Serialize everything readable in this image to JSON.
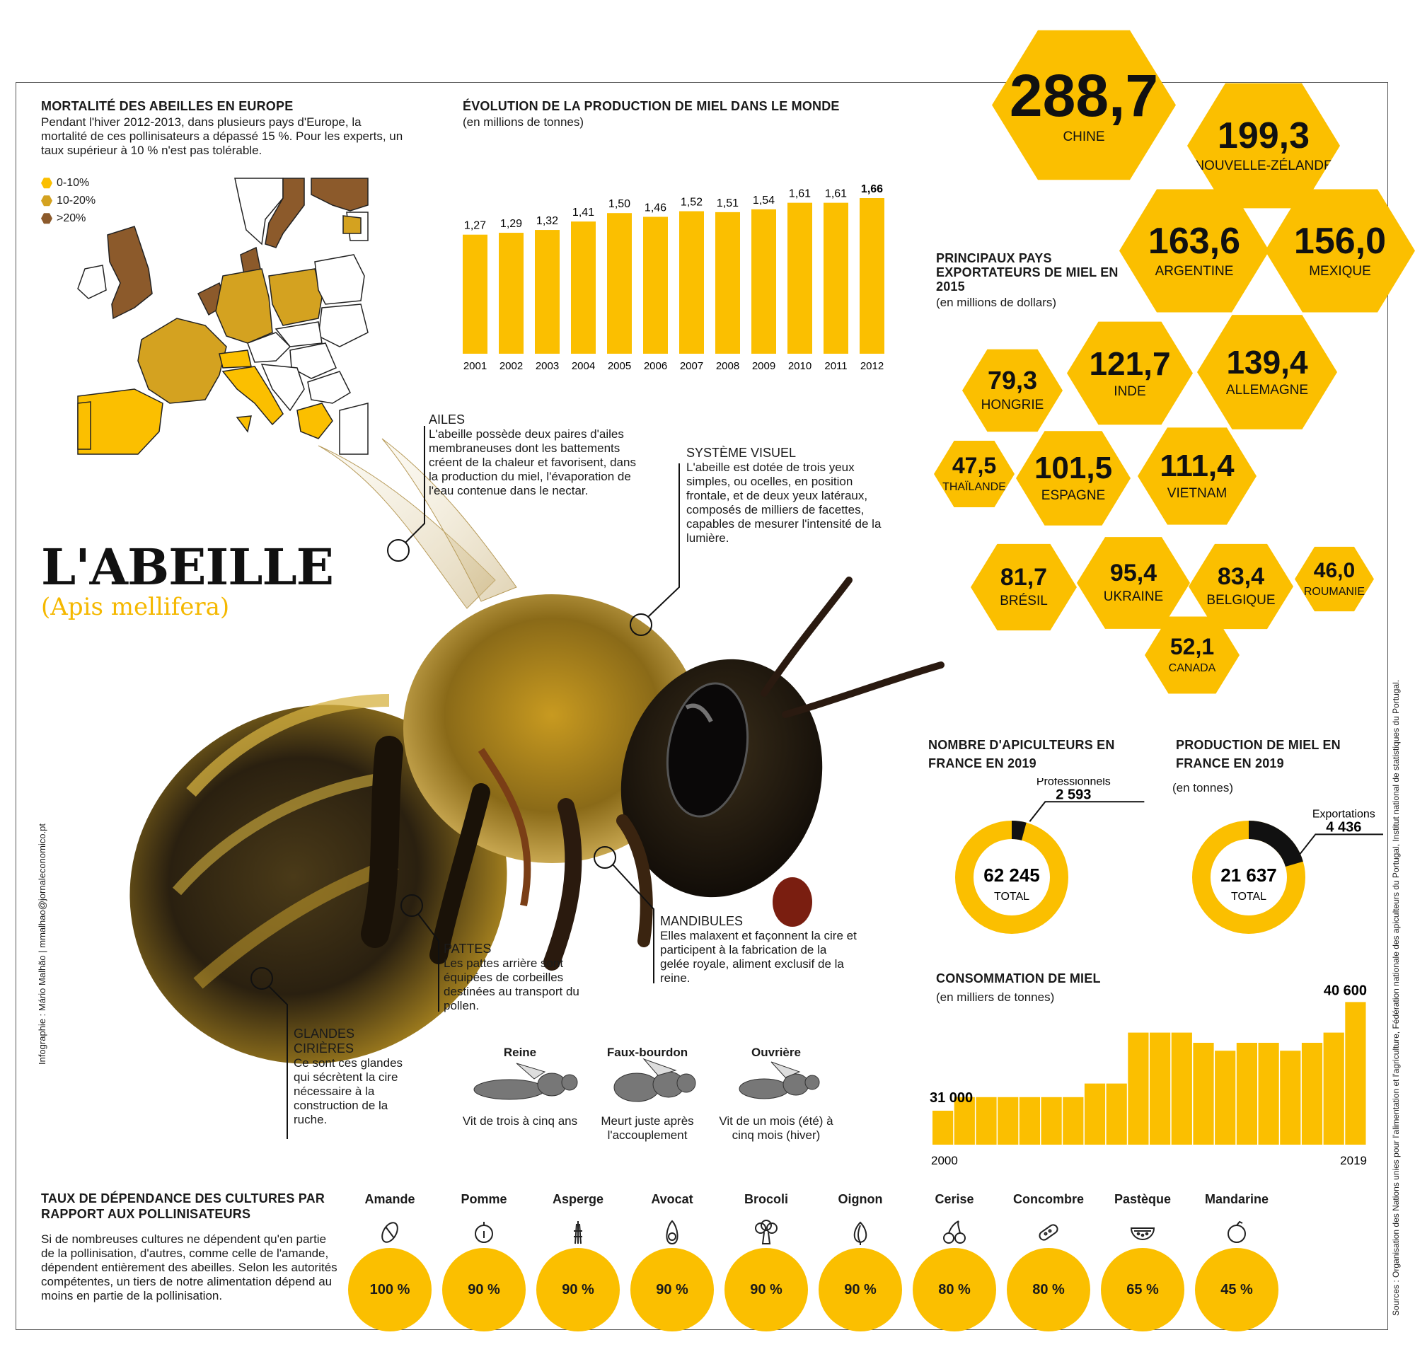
{
  "mortality": {
    "title": "MORTALITÉ DES ABEILLES EN EUROPE",
    "text": "Pendant l'hiver 2012-2013, dans plusieurs pays d'Europe, la mortalité de ces pollinisateurs a dépassé 15 %. Pour les experts, un taux supérieur à 10 % n'est pas tolérable.",
    "legend": [
      {
        "label": "0-10%",
        "color": "#fbbf00"
      },
      {
        "label": "10-20%",
        "color": "#d4a220"
      },
      {
        "label": ">20%",
        "color": "#8c5a2b"
      }
    ]
  },
  "production_world": {
    "title": "ÉVOLUTION DE LA PRODUCTION DE MIEL DANS LE MONDE",
    "subtitle": "(en millions de tonnes)"
  },
  "chart_data": [
    {
      "type": "bar",
      "title": "ÉVOLUTION DE LA PRODUCTION DE MIEL DANS LE MONDE",
      "ylabel": "(en millions de tonnes)",
      "categories": [
        "2001",
        "2002",
        "2003",
        "2004",
        "2005",
        "2006",
        "2007",
        "2008",
        "2009",
        "2010",
        "2011",
        "2012"
      ],
      "values": [
        1.27,
        1.29,
        1.32,
        1.41,
        1.5,
        1.46,
        1.52,
        1.51,
        1.54,
        1.61,
        1.61,
        1.66
      ],
      "labels": [
        "1,27",
        "1,29",
        "1,32",
        "1,41",
        "1,50",
        "1,46",
        "1,52",
        "1,51",
        "1,54",
        "1,61",
        "1,61",
        "1,66"
      ],
      "ylim": [
        0,
        1.66
      ]
    },
    {
      "type": "area",
      "title": "CONSOMMATION DE MIEL",
      "ylabel": "(en milliers de tonnes)",
      "x": [
        2000,
        2001,
        2002,
        2003,
        2004,
        2005,
        2006,
        2007,
        2008,
        2009,
        2010,
        2011,
        2012,
        2013,
        2014,
        2015,
        2016,
        2017,
        2018,
        2019
      ],
      "values": [
        31000,
        32200,
        32200,
        32200,
        32200,
        32200,
        32200,
        33400,
        33400,
        37900,
        37900,
        37900,
        37000,
        36300,
        37000,
        37000,
        36300,
        37000,
        37900,
        40600
      ],
      "labels_shown": {
        "first": "31 000",
        "last": "40 600"
      },
      "xlabels": [
        "2000",
        "2019"
      ],
      "ylim": [
        28000,
        41000
      ]
    },
    {
      "type": "pie",
      "title": "NOMBRE D'APICULTEURS EN FRANCE EN 2019",
      "total": 62245,
      "slices": [
        {
          "name": "Professionnels",
          "value": 2593
        }
      ]
    },
    {
      "type": "pie",
      "title": "PRODUCTION DE MIEL EN FRANCE EN 2019",
      "total": 21637,
      "slices": [
        {
          "name": "Exportations",
          "value": 4436
        }
      ]
    }
  ],
  "exporters": {
    "title": "PRINCIPAUX PAYS EXPORTATEURS DE MIEL EN 2015",
    "subtitle": "(en millions de dollars)",
    "items": [
      {
        "value": "288,7",
        "country": "CHINE"
      },
      {
        "value": "199,3",
        "country": "NOUVELLE-ZÉLANDE"
      },
      {
        "value": "163,6",
        "country": "ARGENTINE"
      },
      {
        "value": "156,0",
        "country": "MEXIQUE"
      },
      {
        "value": "79,3",
        "country": "HONGRIE"
      },
      {
        "value": "121,7",
        "country": "INDE"
      },
      {
        "value": "139,4",
        "country": "ALLEMAGNE"
      },
      {
        "value": "47,5",
        "country": "THAÏLANDE"
      },
      {
        "value": "101,5",
        "country": "ESPAGNE"
      },
      {
        "value": "111,4",
        "country": "VIETNAM"
      },
      {
        "value": "81,7",
        "country": "BRÉSIL"
      },
      {
        "value": "95,4",
        "country": "UKRAINE"
      },
      {
        "value": "83,4",
        "country": "BELGIQUE"
      },
      {
        "value": "46,0",
        "country": "ROUMANIE"
      },
      {
        "value": "52,1",
        "country": "CANADA"
      }
    ]
  },
  "bee": {
    "title": "L'ABEILLE",
    "subtitle": "(Apis mellifera)",
    "callouts": {
      "ailes": {
        "title": "AILES",
        "text": "L'abeille possède deux paires d'ailes membraneuses dont les battements créent de la chaleur et favorisent, dans la production du miel, l'évaporation de l'eau contenue dans le nectar."
      },
      "systeme": {
        "title": "SYSTÈME VISUEL",
        "text": "L'abeille est dotée de trois yeux simples, ou ocelles, en position frontale, et de deux yeux latéraux, composés de milliers de facettes, capables de mesurer l'intensité de la lumière."
      },
      "mandibules": {
        "title": "MANDIBULES",
        "text": "Elles malaxent et façonnent la cire et participent à la fabrication de la gelée royale, aliment exclusif de la reine."
      },
      "pattes": {
        "title": "PATTES",
        "text": "Les pattes arrière sont équipées de corbeilles destinées au transport du pollen."
      },
      "glandes": {
        "title": "GLANDES CIRIÈRES",
        "text": "Ce sont ces glandes qui sécrètent la cire nécessaire à la construction de la ruche."
      }
    },
    "castes": [
      {
        "name": "Reine",
        "text": "Vit de trois à cinq ans"
      },
      {
        "name": "Faux-bourdon",
        "text": "Meurt juste après l'accouplement"
      },
      {
        "name": "Ouvrière",
        "text": "Vit de un mois (été) à cinq mois (hiver)"
      }
    ]
  },
  "beekeepers": {
    "title": "NOMBRE D'APICULTEURS EN FRANCE EN 2019",
    "slice_label": "Professionnels",
    "slice_value": "2 593",
    "total": "62 245",
    "total_label": "TOTAL"
  },
  "production_fr": {
    "title": "PRODUCTION DE MIEL EN FRANCE EN 2019",
    "subtitle": "(en tonnes)",
    "slice_label": "Exportations",
    "slice_value": "4 436",
    "total": "21 637",
    "total_label": "TOTAL"
  },
  "consumption": {
    "title": "CONSOMMATION DE MIEL",
    "subtitle": "(en milliers de tonnes)",
    "first_value": "31 000",
    "last_value": "40 600",
    "first_year": "2000",
    "last_year": "2019"
  },
  "crops": {
    "title": "TAUX DE DÉPENDANCE DES CULTURES PAR RAPPORT AUX POLLINISATEURS",
    "text": "Si de nombreuses cultures ne dépendent qu'en partie de la pollinisation, d'autres, comme celle de l'amande, dépendent entièrement des abeilles. Selon les autorités compétentes, un tiers de notre alimentation dépend au moins en partie de la pollinisation.",
    "items": [
      {
        "name": "Amande",
        "pct": "100 %",
        "icon": "almond-icon"
      },
      {
        "name": "Pomme",
        "pct": "90 %",
        "icon": "apple-icon"
      },
      {
        "name": "Asperge",
        "pct": "90 %",
        "icon": "asparagus-icon"
      },
      {
        "name": "Avocat",
        "pct": "90 %",
        "icon": "avocado-icon"
      },
      {
        "name": "Brocoli",
        "pct": "90 %",
        "icon": "broccoli-icon"
      },
      {
        "name": "Oignon",
        "pct": "90 %",
        "icon": "onion-icon"
      },
      {
        "name": "Cerise",
        "pct": "80 %",
        "icon": "cherry-icon"
      },
      {
        "name": "Concombre",
        "pct": "80 %",
        "icon": "cucumber-icon"
      },
      {
        "name": "Pastèque",
        "pct": "65 %",
        "icon": "watermelon-icon"
      },
      {
        "name": "Mandarine",
        "pct": "45 %",
        "icon": "tangerine-icon"
      }
    ]
  },
  "credits": {
    "author": "Infographie : Mário Malhão  |  mmalhao@jornaleconomico.pt",
    "sources": "Sources : Organisation des Nations unies pour l'alimentation et l'agriculture, Fédération nationale des apiculteurs du Portugal, Institut national de statistiques du Portugal."
  },
  "colors": {
    "accent": "#fbbf00",
    "dark": "#111111",
    "brown": "#8c5a2b",
    "mid": "#d4a220"
  }
}
